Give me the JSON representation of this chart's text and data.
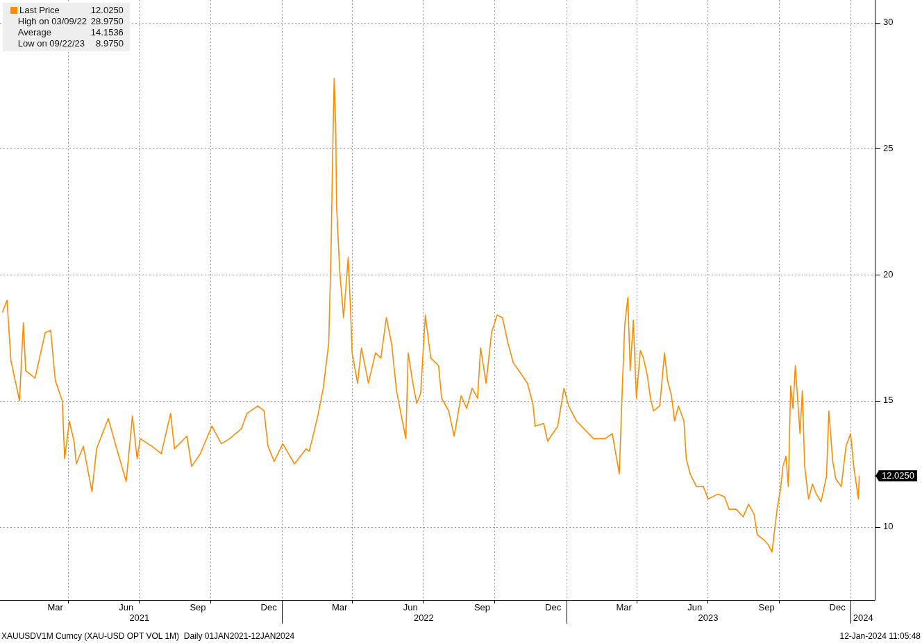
{
  "chart_data": {
    "type": "line",
    "legend": "top left",
    "grid": true,
    "marker": "none",
    "line_style": "solid",
    "x": [
      "2021-01-07",
      "2021-01-13",
      "2021-01-18",
      "2021-01-29",
      "2021-02-03",
      "2021-02-06",
      "2021-02-18",
      "2021-03-03",
      "2021-03-10",
      "2021-03-16",
      "2021-03-25",
      "2021-03-28",
      "2021-04-03",
      "2021-04-09",
      "2021-04-12",
      "2021-04-21",
      "2021-05-02",
      "2021-05-08",
      "2021-05-23",
      "2021-06-01",
      "2021-06-15",
      "2021-06-23",
      "2021-06-29",
      "2021-07-03",
      "2021-07-18",
      "2021-07-30",
      "2021-08-11",
      "2021-08-16",
      "2021-09-01",
      "2021-09-07",
      "2021-09-18",
      "2021-10-03",
      "2021-10-15",
      "2021-10-26",
      "2021-11-10",
      "2021-11-17",
      "2021-12-01",
      "2021-12-09",
      "2021-12-14",
      "2021-12-22",
      "2022-01-02",
      "2022-01-17",
      "2022-02-01",
      "2022-02-05",
      "2022-02-16",
      "2022-02-23",
      "2022-03-02",
      "2022-03-05",
      "2022-03-07",
      "2022-03-09",
      "2022-03-11",
      "2022-03-12",
      "2022-03-16",
      "2022-03-21",
      "2022-03-27",
      "2022-03-30",
      "2022-04-01",
      "2022-04-08",
      "2022-04-13",
      "2022-04-22",
      "2022-05-01",
      "2022-05-08",
      "2022-05-15",
      "2022-05-22",
      "2022-05-28",
      "2022-06-02",
      "2022-06-09",
      "2022-06-12",
      "2022-06-18",
      "2022-06-23",
      "2022-06-28",
      "2022-07-04",
      "2022-07-11",
      "2022-07-21",
      "2022-07-25",
      "2022-08-03",
      "2022-08-10",
      "2022-08-19",
      "2022-08-26",
      "2022-09-02",
      "2022-09-09",
      "2022-09-13",
      "2022-09-20",
      "2022-09-27",
      "2022-10-04",
      "2022-10-11",
      "2022-10-18",
      "2022-10-25",
      "2022-11-01",
      "2022-11-12",
      "2022-11-19",
      "2022-11-22",
      "2022-12-03",
      "2022-12-08",
      "2022-12-21",
      "2022-12-29",
      "2023-01-04",
      "2023-01-14",
      "2023-02-05",
      "2023-02-20",
      "2023-03-01",
      "2023-03-10",
      "2023-03-14",
      "2023-03-17",
      "2023-03-21",
      "2023-03-24",
      "2023-03-28",
      "2023-04-01",
      "2023-04-06",
      "2023-04-10",
      "2023-04-15",
      "2023-04-19",
      "2023-04-23",
      "2023-05-01",
      "2023-05-07",
      "2023-05-11",
      "2023-05-16",
      "2023-05-20",
      "2023-05-25",
      "2023-06-01",
      "2023-06-04",
      "2023-06-09",
      "2023-06-17",
      "2023-06-26",
      "2023-07-02",
      "2023-07-14",
      "2023-07-23",
      "2023-07-29",
      "2023-08-07",
      "2023-08-16",
      "2023-08-23",
      "2023-08-30",
      "2023-09-03",
      "2023-09-11",
      "2023-09-17",
      "2023-09-22",
      "2023-09-29",
      "2023-10-03",
      "2023-10-06",
      "2023-10-10",
      "2023-10-13",
      "2023-10-16",
      "2023-10-19",
      "2023-10-22",
      "2023-10-28",
      "2023-10-31",
      "2023-11-03",
      "2023-11-08",
      "2023-11-13",
      "2023-11-18",
      "2023-11-24",
      "2023-12-01",
      "2023-12-04",
      "2023-12-09",
      "2023-12-13",
      "2023-12-20",
      "2023-12-26",
      "2024-01-01",
      "2024-01-05",
      "2024-01-11",
      "2024-01-12"
    ],
    "series": [
      {
        "name": "Last Price",
        "color": "#ff8c00",
        "values": [
          18.5,
          19.0,
          16.6,
          15.0,
          18.1,
          16.2,
          15.9,
          17.7,
          17.8,
          15.8,
          15.0,
          12.7,
          14.2,
          13.4,
          12.5,
          13.2,
          11.4,
          13.1,
          14.3,
          13.3,
          11.8,
          14.4,
          12.7,
          13.5,
          13.2,
          12.9,
          14.5,
          13.1,
          13.6,
          12.4,
          12.9,
          14.0,
          13.3,
          13.5,
          13.9,
          14.5,
          14.8,
          14.6,
          13.2,
          12.6,
          13.3,
          12.5,
          13.1,
          13.0,
          14.4,
          15.5,
          17.3,
          21.0,
          24.7,
          27.8,
          25.9,
          22.8,
          20.2,
          18.3,
          20.7,
          18.6,
          16.9,
          15.7,
          17.1,
          15.7,
          16.9,
          16.7,
          18.3,
          17.2,
          15.4,
          14.6,
          13.5,
          16.9,
          15.7,
          14.9,
          15.3,
          18.4,
          16.7,
          16.4,
          15.1,
          14.6,
          13.6,
          15.2,
          14.7,
          15.5,
          15.1,
          17.1,
          15.7,
          17.7,
          18.4,
          18.3,
          17.3,
          16.5,
          16.2,
          15.7,
          14.9,
          14.0,
          14.1,
          13.4,
          14.0,
          15.5,
          14.8,
          14.2,
          13.5,
          13.5,
          13.7,
          12.1,
          15.6,
          18.0,
          19.1,
          16.2,
          18.2,
          15.1,
          17.0,
          16.7,
          16.0,
          15.1,
          14.6,
          14.8,
          16.9,
          15.8,
          15.2,
          14.2,
          14.8,
          14.2,
          12.7,
          12.1,
          11.6,
          11.6,
          11.1,
          11.3,
          11.2,
          10.7,
          10.7,
          10.4,
          10.9,
          10.5,
          9.7,
          9.5,
          9.3,
          9.0,
          10.8,
          11.5,
          12.4,
          12.8,
          11.6,
          15.6,
          14.7,
          16.4,
          13.7,
          15.4,
          12.4,
          11.1,
          11.7,
          11.3,
          11.0,
          12.0,
          14.6,
          12.6,
          11.9,
          11.6,
          13.2,
          13.7,
          12.4,
          11.1,
          12.025
        ]
      }
    ],
    "xlim": [
      "2021-01-04",
      "2024-02-01"
    ],
    "xticks": [
      {
        "value": "2021-03-16",
        "label": "Mar"
      },
      {
        "value": "2021-04-01",
        "label": null
      },
      {
        "value": "2021-06-15",
        "label": "Jun"
      },
      {
        "value": "2021-07-01",
        "label": null
      },
      {
        "value": "2021-09-15",
        "label": "Sep"
      },
      {
        "value": "2021-10-01",
        "label": null
      },
      {
        "value": "2021-12-15",
        "label": "Dec"
      },
      {
        "value": "2022-01-01",
        "label": null
      },
      {
        "value": "2022-03-16",
        "label": "Mar"
      },
      {
        "value": "2022-04-01",
        "label": null
      },
      {
        "value": "2022-06-15",
        "label": "Jun"
      },
      {
        "value": "2022-07-01",
        "label": null
      },
      {
        "value": "2022-09-15",
        "label": "Sep"
      },
      {
        "value": "2022-10-01",
        "label": null
      },
      {
        "value": "2022-12-15",
        "label": "Dec"
      },
      {
        "value": "2023-01-01",
        "label": null
      },
      {
        "value": "2023-03-16",
        "label": "Mar"
      },
      {
        "value": "2023-04-01",
        "label": null
      },
      {
        "value": "2023-06-15",
        "label": "Jun"
      },
      {
        "value": "2023-07-01",
        "label": null
      },
      {
        "value": "2023-09-15",
        "label": "Sep"
      },
      {
        "value": "2023-10-01",
        "label": null
      },
      {
        "value": "2023-12-15",
        "label": "Dec"
      },
      {
        "value": "2024-01-01",
        "label": null
      }
    ],
    "x2lim": [
      "2021-01-04",
      "2024-02-01"
    ],
    "x2ticks": [
      {
        "value": "2021-07-02",
        "label": "2021"
      },
      {
        "value": "2022-01-01",
        "label": null
      },
      {
        "value": "2022-07-02",
        "label": "2022"
      },
      {
        "value": "2023-01-01",
        "label": null
      },
      {
        "value": "2023-07-02",
        "label": "2023"
      },
      {
        "value": "2024-01-01",
        "label": null
      },
      {
        "value": "2024-01-17",
        "label": "2024"
      }
    ],
    "ylim": [
      7.1,
      30.9
    ],
    "yticks": [
      10,
      15,
      20,
      25,
      30
    ],
    "annotations": [
      {
        "text": "12.0250",
        "x": "2024-01-12",
        "y": 12.025
      },
      "High on 03/09/22 28.9750",
      "Average 14.1536",
      "Low on 09/22/23 8.9750",
      "XAUUSDV1M Curncy (XAU-USD OPT VOL 1M)  Daily 01JAN2021-12JAN2024",
      "12-Jan-2024 11:05:48"
    ]
  }
}
